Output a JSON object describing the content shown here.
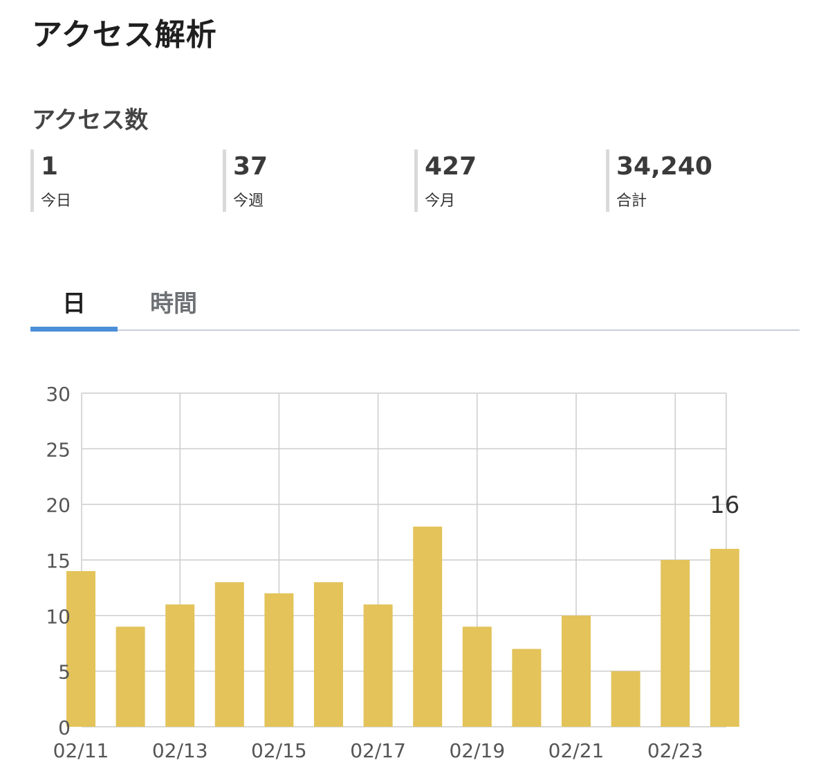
{
  "page": {
    "title": "アクセス解析",
    "section_title": "アクセス数"
  },
  "stats": [
    {
      "value": "1",
      "label": "今日"
    },
    {
      "value": "37",
      "label": "今週"
    },
    {
      "value": "427",
      "label": "今月"
    },
    {
      "value": "34,240",
      "label": "合計"
    }
  ],
  "tabs": [
    {
      "label": "日",
      "active": true
    },
    {
      "label": "時間",
      "active": false
    }
  ],
  "colors": {
    "bar": "#e3c35a",
    "tab_indicator": "#4a8fd8",
    "grid": "#cccccc",
    "stat_border": "#d9d9d9"
  },
  "chart_data": {
    "type": "bar",
    "categories": [
      "02/11",
      "02/12",
      "02/13",
      "02/14",
      "02/15",
      "02/16",
      "02/17",
      "02/18",
      "02/19",
      "02/20",
      "02/21",
      "02/22",
      "02/23",
      "02/24"
    ],
    "x_tick_labels": [
      "02/11",
      "02/13",
      "02/15",
      "02/17",
      "02/19",
      "02/21",
      "02/23"
    ],
    "values": [
      14,
      9,
      11,
      13,
      12,
      13,
      11,
      18,
      9,
      7,
      10,
      5,
      15,
      16
    ],
    "y_ticks": [
      0,
      5,
      10,
      15,
      20,
      25,
      30
    ],
    "ylim": [
      0,
      30
    ],
    "data_labels": [
      {
        "index": 13,
        "text": "16"
      }
    ],
    "grid": true,
    "title": "",
    "xlabel": "",
    "ylabel": ""
  }
}
